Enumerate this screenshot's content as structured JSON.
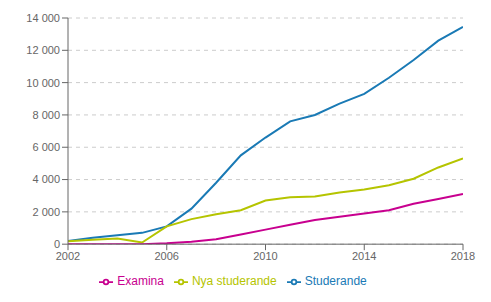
{
  "chart_data": {
    "type": "line",
    "x": [
      2002,
      2003,
      2004,
      2005,
      2006,
      2007,
      2008,
      2009,
      2010,
      2011,
      2012,
      2013,
      2014,
      2015,
      2016,
      2017,
      2018
    ],
    "xlim": [
      2002,
      2018
    ],
    "xticks": [
      2002,
      2006,
      2010,
      2014,
      2018
    ],
    "ylim": [
      0,
      14000
    ],
    "yticks": [
      0,
      {
        "value": 2000,
        "label": "2 000"
      },
      {
        "value": 4000,
        "label": "4 000"
      },
      {
        "value": 6000,
        "label": "6 000"
      },
      {
        "value": 8000,
        "label": "8 000"
      },
      {
        "value": 10000,
        "label": "10 000"
      },
      {
        "value": 12000,
        "label": "12 000"
      },
      {
        "value": 14000,
        "label": "14 000"
      }
    ],
    "series": [
      {
        "name": "Studerande",
        "color": "#1a7ab5",
        "values": [
          200,
          400,
          550,
          700,
          1100,
          2200,
          3800,
          5500,
          6600,
          7600,
          8000,
          8700,
          9300,
          10300,
          11400,
          12600,
          13450
        ]
      },
      {
        "name": "Nya studerande",
        "color": "#b5c400",
        "values": [
          180,
          280,
          350,
          100,
          1100,
          1550,
          1850,
          2100,
          2700,
          2900,
          2950,
          3200,
          3380,
          3650,
          4050,
          4750,
          5300
        ]
      },
      {
        "name": "Examina",
        "color": "#c8008f",
        "values": [
          0,
          0,
          0,
          0,
          50,
          150,
          300,
          600,
          900,
          1200,
          1500,
          1700,
          1900,
          2100,
          2500,
          2800,
          3100
        ]
      }
    ],
    "grid": true,
    "legend": "bottom"
  }
}
